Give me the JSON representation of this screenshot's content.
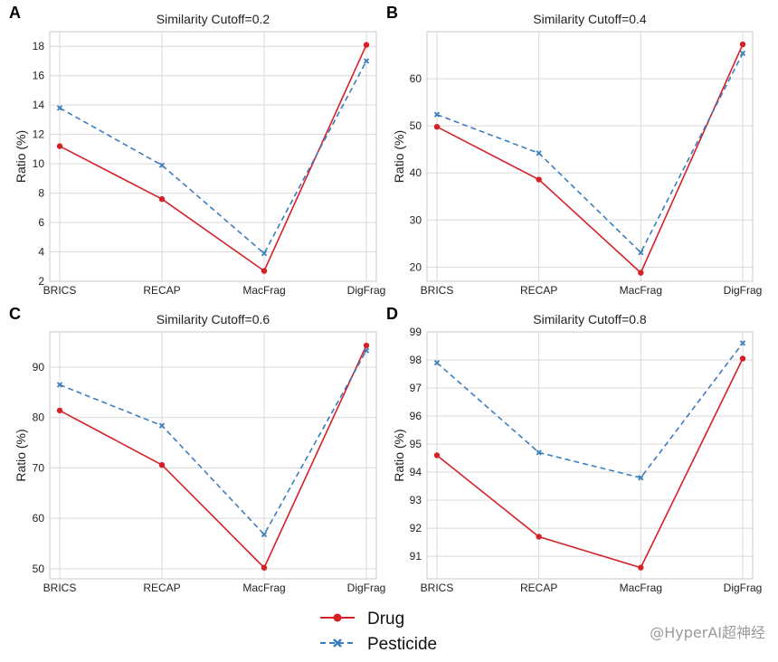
{
  "watermark": "@HyperAI超神经",
  "colors": {
    "drug": "#d62027",
    "pesticide": "#3c7dbd"
  },
  "legend": [
    {
      "name": "Drug",
      "marker": "circle",
      "line": "solid"
    },
    {
      "name": "Pesticide",
      "marker": "x",
      "line": "dashed"
    }
  ],
  "chart_data": [
    {
      "type": "line",
      "letter": "A",
      "title": "Similarity Cutoff=0.2",
      "xlabel": "",
      "ylabel": "Ratio (%)",
      "categories": [
        "BRICS",
        "RECAP",
        "MacFrag",
        "DigFrag"
      ],
      "ylim": [
        2,
        19
      ],
      "yticks": [
        2,
        4,
        6,
        8,
        10,
        12,
        14,
        16,
        18
      ],
      "grid": true,
      "legend_position": "bottom-center",
      "series": [
        {
          "name": "Drug",
          "values": [
            11.2,
            7.6,
            2.7,
            18.1
          ]
        },
        {
          "name": "Pesticide",
          "values": [
            13.8,
            9.9,
            3.9,
            17.0
          ]
        }
      ]
    },
    {
      "type": "line",
      "letter": "B",
      "title": "Similarity Cutoff=0.4",
      "xlabel": "",
      "ylabel": "Ratio (%)",
      "categories": [
        "BRICS",
        "RECAP",
        "MacFrag",
        "DigFrag"
      ],
      "ylim": [
        17,
        70
      ],
      "yticks": [
        20,
        30,
        40,
        50,
        60
      ],
      "grid": true,
      "legend_position": "bottom-center",
      "series": [
        {
          "name": "Drug",
          "values": [
            49.8,
            38.6,
            18.8,
            67.3
          ]
        },
        {
          "name": "Pesticide",
          "values": [
            52.4,
            44.2,
            23.1,
            65.4
          ]
        }
      ]
    },
    {
      "type": "line",
      "letter": "C",
      "title": "Similarity Cutoff=0.6",
      "xlabel": "",
      "ylabel": "Ratio (%)",
      "categories": [
        "BRICS",
        "RECAP",
        "MacFrag",
        "DigFrag"
      ],
      "ylim": [
        48,
        97
      ],
      "yticks": [
        50,
        60,
        70,
        80,
        90
      ],
      "grid": true,
      "legend_position": "bottom-center",
      "series": [
        {
          "name": "Drug",
          "values": [
            81.4,
            70.6,
            50.2,
            94.3
          ]
        },
        {
          "name": "Pesticide",
          "values": [
            86.5,
            78.4,
            56.8,
            93.3
          ]
        }
      ]
    },
    {
      "type": "line",
      "letter": "D",
      "title": "Similarity Cutoff=0.8",
      "xlabel": "",
      "ylabel": "Ratio (%)",
      "categories": [
        "BRICS",
        "RECAP",
        "MacFrag",
        "DigFrag"
      ],
      "ylim": [
        90.2,
        99
      ],
      "yticks": [
        91,
        92,
        93,
        94,
        95,
        96,
        97,
        98,
        99
      ],
      "grid": true,
      "legend_position": "bottom-center",
      "series": [
        {
          "name": "Drug",
          "values": [
            94.6,
            91.7,
            90.6,
            98.05
          ]
        },
        {
          "name": "Pesticide",
          "values": [
            97.9,
            94.7,
            93.8,
            98.6
          ]
        }
      ]
    }
  ]
}
